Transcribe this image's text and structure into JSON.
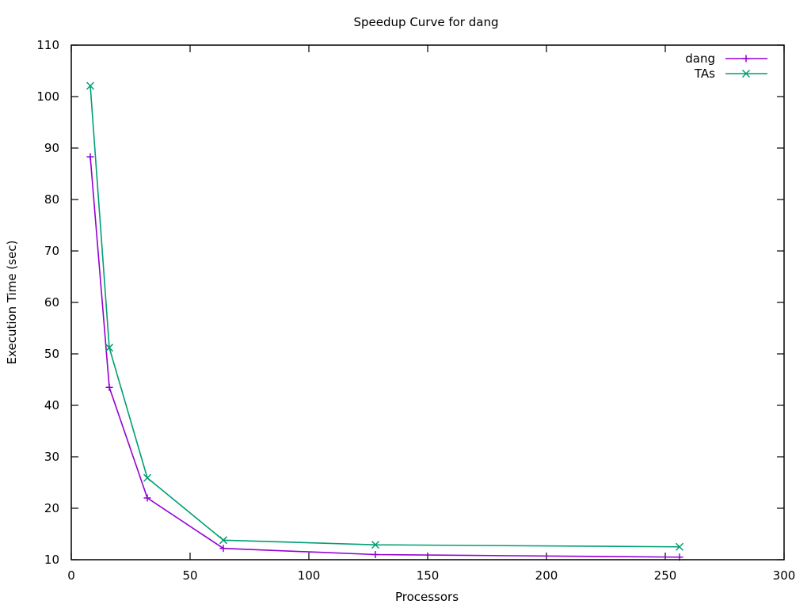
{
  "chart_data": {
    "type": "line",
    "title": "Speedup Curve for dang",
    "xlabel": "Processors",
    "ylabel": "Execution Time (sec)",
    "xlim": [
      0,
      300
    ],
    "ylim": [
      10,
      110
    ],
    "xticks": [
      0,
      50,
      100,
      150,
      200,
      250,
      300
    ],
    "yticks": [
      10,
      20,
      30,
      40,
      50,
      60,
      70,
      80,
      90,
      100,
      110
    ],
    "grid": false,
    "legend_position": "top-right",
    "series": [
      {
        "name": "dang",
        "color": "#9400d3",
        "marker": "plus",
        "x": [
          8,
          16,
          32,
          64,
          128,
          256
        ],
        "y": [
          88.3,
          43.5,
          22.0,
          12.2,
          11.0,
          10.5
        ]
      },
      {
        "name": "TAs",
        "color": "#009e73",
        "marker": "cross",
        "x": [
          8,
          16,
          32,
          64,
          128,
          256
        ],
        "y": [
          102.1,
          51.2,
          25.9,
          13.8,
          12.9,
          12.5
        ]
      }
    ]
  }
}
